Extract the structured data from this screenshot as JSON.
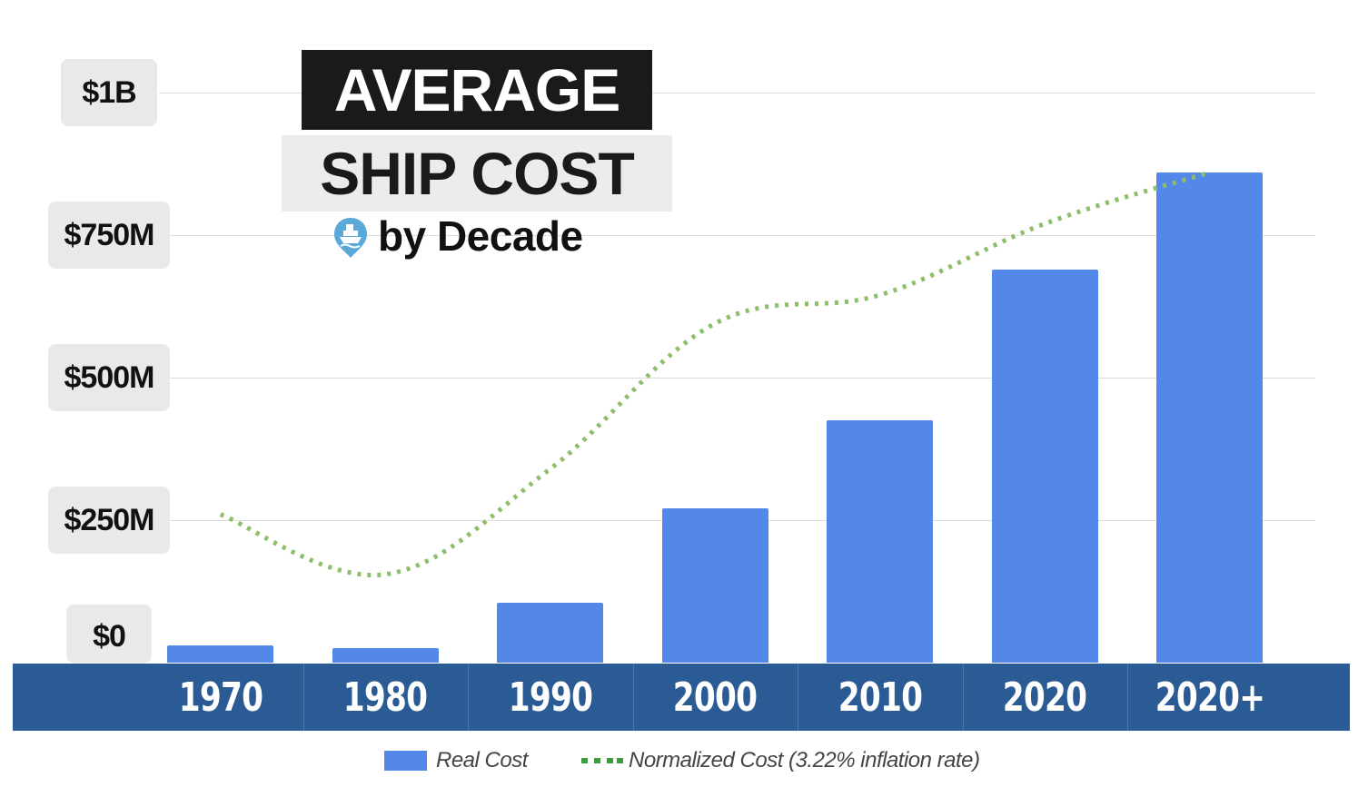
{
  "title_line1": "AVERAGE",
  "title_line2": "SHIP COST",
  "subtitle": "by Decade",
  "logo_icon": "ship-pin-icon",
  "colors": {
    "real_cost_bar": "#5488e8",
    "normalized_line": "#8dbf6a",
    "x_band": "#2a5b94",
    "title_dark_box": "#1a1a1a",
    "title_light_box": "#ececec",
    "legend_dash": "#3f9a3a"
  },
  "chart_data": {
    "type": "bar",
    "categories": [
      "1970",
      "1980",
      "1990",
      "2000",
      "2010",
      "2020",
      "2020+"
    ],
    "series": [
      {
        "name": "Real Cost",
        "type": "bar",
        "values": [
          30,
          25,
          105,
          270,
          425,
          690,
          860
        ]
      },
      {
        "name": "Normalized Cost (3.22% inflation rate)",
        "type": "line",
        "style": "dotted",
        "values": [
          260,
          155,
          340,
          595,
          645,
          770,
          860
        ]
      }
    ],
    "y_ticks": [
      {
        "value": 0,
        "label": "$0"
      },
      {
        "value": 250,
        "label": "$250M"
      },
      {
        "value": 500,
        "label": "$500M"
      },
      {
        "value": 750,
        "label": "$750M"
      },
      {
        "value": 1000,
        "label": "$1B"
      }
    ],
    "y_unit": "$M",
    "ylim": [
      0,
      1000
    ],
    "grid": true,
    "legend": [
      {
        "label": "Real Cost",
        "marker": "bar"
      },
      {
        "label": "Normalized Cost (3.22% inflation rate)",
        "marker": "dotted-line"
      }
    ],
    "legend_position": "bottom"
  }
}
